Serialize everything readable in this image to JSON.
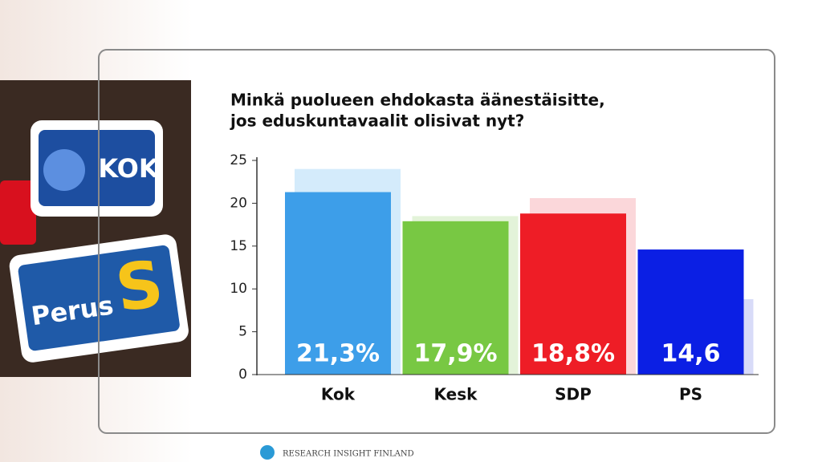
{
  "chart_data": {
    "type": "bar",
    "title": [
      "Minkä puolueen ehdokasta äänestäisitte,",
      "jos eduskuntavaalit olisivat nyt?"
    ],
    "categories": [
      "Kok",
      "Kesk",
      "SDP",
      "PS"
    ],
    "values": [
      21.3,
      17.9,
      18.8,
      14.6
    ],
    "value_labels": [
      "21,3%",
      "17,9%",
      "18,8%",
      "14,6"
    ],
    "colors": [
      "#3d9ee9",
      "#78c843",
      "#ee1d26",
      "#0b1fe4"
    ],
    "previous_values": [
      24,
      18.5,
      20.6,
      8.8
    ],
    "previous_colors": [
      "#d4ebfb",
      "#e3f3d9",
      "#fbd7da",
      "#d8dbf8"
    ],
    "ylim": [
      0,
      25
    ],
    "yticks": [
      0,
      5,
      10,
      15,
      20,
      25
    ]
  },
  "source": "RESEARCH INSIGHT FINLAND",
  "image_texts": [
    "KOK",
    "Perus",
    "S"
  ]
}
